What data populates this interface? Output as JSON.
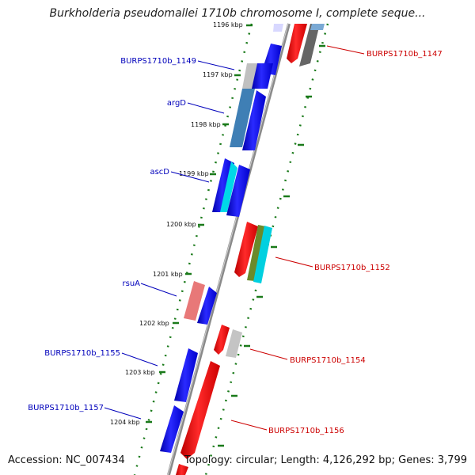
{
  "title": "Burkholderia pseudomallei 1710b chromosome I, complete seque...",
  "footer": {
    "accession": "Accession: NC_007434",
    "summary": "Topology: circular; Length: 4,126,292 bp; Genes: 3,799"
  },
  "ticks": [
    "1196 kbp",
    "1197 kbp",
    "1198 kbp",
    "1199 kbp",
    "1200 kbp",
    "1201 kbp",
    "1202 kbp",
    "1203 kbp",
    "1204 kbp"
  ],
  "labels": {
    "left": [
      "BURPS1710b_1149",
      "argD",
      "ascD",
      "rsuA",
      "BURPS1710b_1155",
      "BURPS1710b_1157"
    ],
    "right": [
      "BURPS1710b_1147",
      "BURPS1710b_1152",
      "BURPS1710b_1154",
      "BURPS1710b_1156"
    ]
  },
  "colors": {
    "backbone": "#8a8a8a",
    "forward_label": "#0000bb",
    "reverse_label": "#cc0000",
    "tick": "#1a7a1a"
  }
}
